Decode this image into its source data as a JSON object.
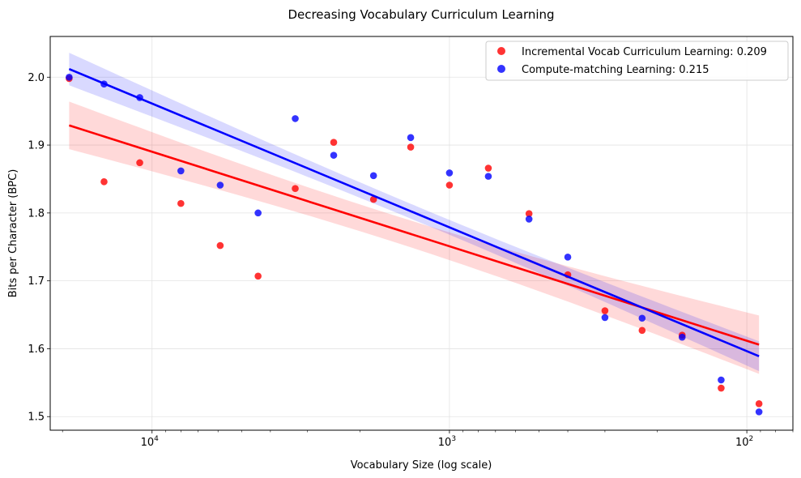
{
  "chart_data": {
    "type": "scatter",
    "title": "Decreasing Vocabulary Curriculum Learning",
    "xlabel": "Vocabulary Size (log scale)",
    "ylabel": "Bits per Character (BPC)",
    "x_scale": "log",
    "x_reversed": true,
    "xlim": [
      22000,
      70
    ],
    "ylim": [
      1.48,
      2.06
    ],
    "x_ticks": [
      {
        "value": 10000,
        "base": "10",
        "exp": "4"
      },
      {
        "value": 1000,
        "base": "10",
        "exp": "3"
      },
      {
        "value": 100,
        "base": "10",
        "exp": "2"
      }
    ],
    "y_ticks": [
      "1.5",
      "1.6",
      "1.7",
      "1.8",
      "1.9",
      "2.0"
    ],
    "grid": true,
    "legend_position": "top-right",
    "series": [
      {
        "name": "Incremental Vocab Curriculum Learning: 0.209",
        "color": "#ff0000",
        "x": [
          19000,
          14500,
          11000,
          8000,
          5900,
          4400,
          3300,
          2450,
          1800,
          1350,
          1000,
          740,
          540,
          400,
          300,
          225,
          165,
          122,
          91
        ],
        "y": [
          1.998,
          1.846,
          1.874,
          1.814,
          1.752,
          1.707,
          1.836,
          1.904,
          1.82,
          1.897,
          1.841,
          1.866,
          1.799,
          1.709,
          1.656,
          1.627,
          1.62,
          1.542,
          1.519
        ],
        "fit": {
          "x_start": 19000,
          "x_end": 91,
          "y_start": 1.929,
          "y_end": 1.606,
          "band_start": 0.035,
          "band_end": 0.043
        }
      },
      {
        "name": "Compute-matching Learning: 0.215",
        "color": "#0000ff",
        "x": [
          19000,
          14500,
          11000,
          8000,
          5900,
          4400,
          3300,
          2450,
          1800,
          1350,
          1000,
          740,
          540,
          400,
          300,
          225,
          165,
          122,
          91
        ],
        "y": [
          2.0,
          1.99,
          1.97,
          1.862,
          1.841,
          1.8,
          1.939,
          1.885,
          1.855,
          1.911,
          1.859,
          1.854,
          1.791,
          1.735,
          1.646,
          1.645,
          1.617,
          1.554,
          1.507
        ],
        "fit": {
          "x_start": 19000,
          "x_end": 91,
          "y_start": 2.012,
          "y_end": 1.589,
          "band_start": 0.024,
          "band_end": 0.022
        }
      }
    ]
  }
}
